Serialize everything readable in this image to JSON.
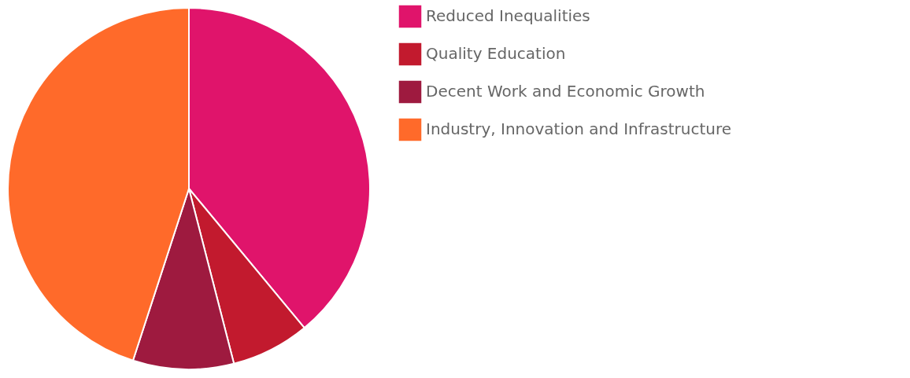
{
  "chart_data": {
    "type": "pie",
    "categories": [
      "Reduced Inequalities",
      "Quality Education",
      "Decent Work and Economic Growth",
      "Industry, Innovation and Infrastructure"
    ],
    "values": [
      39,
      7,
      9,
      45
    ],
    "colors": [
      "#e0146b",
      "#c21a2e",
      "#9e1a3f",
      "#ff6a2a"
    ],
    "legend": "right"
  }
}
